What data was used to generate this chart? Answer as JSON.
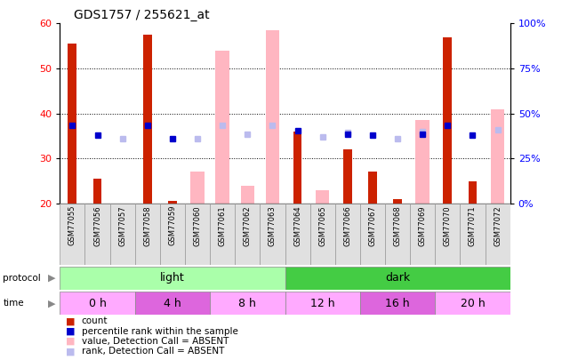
{
  "title": "GDS1757 / 255621_at",
  "samples": [
    "GSM77055",
    "GSM77056",
    "GSM77057",
    "GSM77058",
    "GSM77059",
    "GSM77060",
    "GSM77061",
    "GSM77062",
    "GSM77063",
    "GSM77064",
    "GSM77065",
    "GSM77066",
    "GSM77067",
    "GSM77068",
    "GSM77069",
    "GSM77070",
    "GSM77071",
    "GSM77072"
  ],
  "count_values": [
    55.5,
    25.5,
    null,
    57.5,
    20.5,
    null,
    null,
    null,
    null,
    36.0,
    null,
    32.0,
    27.0,
    21.0,
    null,
    57.0,
    25.0,
    null
  ],
  "rank_values": [
    43.5,
    38.0,
    null,
    43.5,
    36.0,
    null,
    null,
    null,
    null,
    40.5,
    null,
    38.5,
    38.0,
    null,
    38.5,
    43.5,
    38.0,
    null
  ],
  "absent_value_values": [
    null,
    null,
    null,
    null,
    null,
    27.0,
    54.0,
    24.0,
    58.5,
    null,
    23.0,
    null,
    null,
    null,
    38.5,
    null,
    null,
    41.0
  ],
  "absent_rank_values": [
    null,
    null,
    36.0,
    null,
    null,
    36.0,
    43.5,
    38.5,
    43.5,
    null,
    37.0,
    39.5,
    null,
    36.0,
    40.0,
    null,
    null,
    41.0
  ],
  "protocol_groups": [
    {
      "label": "light",
      "start": 0,
      "end": 8,
      "color": "#AAFFAA"
    },
    {
      "label": "dark",
      "start": 9,
      "end": 17,
      "color": "#44CC44"
    }
  ],
  "time_groups": [
    {
      "label": "0 h",
      "start": 0,
      "end": 2,
      "color": "#FFAAFF"
    },
    {
      "label": "4 h",
      "start": 3,
      "end": 5,
      "color": "#DD66DD"
    },
    {
      "label": "8 h",
      "start": 6,
      "end": 8,
      "color": "#FFAAFF"
    },
    {
      "label": "12 h",
      "start": 9,
      "end": 11,
      "color": "#FFAAFF"
    },
    {
      "label": "16 h",
      "start": 12,
      "end": 14,
      "color": "#DD66DD"
    },
    {
      "label": "20 h",
      "start": 15,
      "end": 17,
      "color": "#FFAAFF"
    }
  ],
  "ylim_left": [
    20,
    60
  ],
  "ylim_right": [
    0,
    100
  ],
  "left_ticks": [
    20,
    30,
    40,
    50,
    60
  ],
  "right_ticks": [
    0,
    25,
    50,
    75,
    100
  ],
  "color_count": "#CC2200",
  "color_rank": "#0000CC",
  "color_absent_value": "#FFB6C1",
  "color_absent_rank": "#BBBBEE",
  "legend_items": [
    {
      "label": "count",
      "color": "#CC2200"
    },
    {
      "label": "percentile rank within the sample",
      "color": "#0000CC"
    },
    {
      "label": "value, Detection Call = ABSENT",
      "color": "#FFB6C1"
    },
    {
      "label": "rank, Detection Call = ABSENT",
      "color": "#BBBBEE"
    }
  ]
}
